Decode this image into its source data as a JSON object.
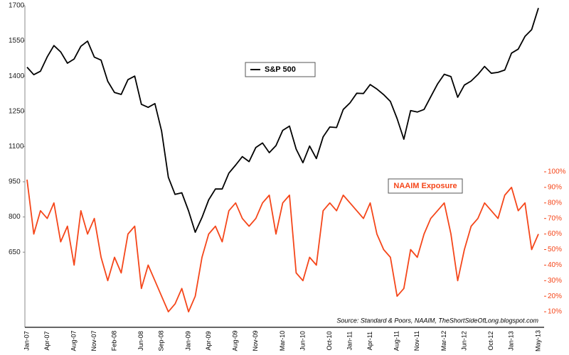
{
  "chart_data": {
    "type": "line",
    "categories": [
      "Jan-07",
      null,
      null,
      "Apr-07",
      null,
      null,
      null,
      "Aug-07",
      null,
      null,
      "Nov-07",
      null,
      null,
      "Feb-08",
      null,
      null,
      null,
      "Jun-08",
      null,
      null,
      "Sep-08",
      null,
      null,
      null,
      "Jan-09",
      null,
      null,
      "Apr-09",
      null,
      null,
      null,
      "Aug-09",
      null,
      null,
      "Nov-09",
      null,
      null,
      null,
      "Mar-10",
      null,
      null,
      "Jun-10",
      null,
      null,
      null,
      "Oct-10",
      null,
      null,
      "Jan-11",
      null,
      null,
      "Apr-11",
      null,
      null,
      null,
      "Aug-11",
      null,
      null,
      "Nov-11",
      null,
      null,
      null,
      "Mar-12",
      null,
      null,
      "Jun-12",
      null,
      null,
      null,
      "Oct-12",
      null,
      null,
      "Jan-13",
      null,
      null,
      null,
      "May-13"
    ],
    "series": [
      {
        "name": "S&P 500",
        "color": "#000000",
        "values": [
          1438,
          1406,
          1421,
          1482,
          1530,
          1503,
          1455,
          1473,
          1527,
          1549,
          1481,
          1468,
          1378,
          1330,
          1322,
          1385,
          1400,
          1280,
          1267,
          1283,
          1166,
          969,
          896,
          903,
          826,
          735,
          798,
          873,
          919,
          919,
          987,
          1021,
          1057,
          1036,
          1096,
          1115,
          1074,
          1104,
          1169,
          1187,
          1089,
          1031,
          1102,
          1049,
          1141,
          1183,
          1181,
          1258,
          1286,
          1327,
          1326,
          1364,
          1345,
          1321,
          1292,
          1219,
          1131,
          1253,
          1247,
          1258,
          1312,
          1366,
          1408,
          1398,
          1310,
          1362,
          1379,
          1407,
          1441,
          1412,
          1416,
          1426,
          1498,
          1515,
          1569,
          1598,
          1690
        ]
      },
      {
        "name": "NAAIM Exposure",
        "color": "#f5461a",
        "axis": "y2",
        "values": [
          95,
          60,
          75,
          70,
          80,
          55,
          65,
          40,
          75,
          60,
          70,
          45,
          30,
          45,
          35,
          60,
          65,
          25,
          40,
          30,
          20,
          10,
          15,
          25,
          10,
          20,
          45,
          60,
          65,
          55,
          75,
          80,
          70,
          65,
          70,
          80,
          85,
          60,
          80,
          85,
          35,
          30,
          45,
          40,
          75,
          80,
          75,
          85,
          80,
          75,
          70,
          80,
          60,
          50,
          45,
          20,
          25,
          50,
          45,
          60,
          70,
          75,
          80,
          60,
          30,
          50,
          65,
          70,
          80,
          75,
          70,
          85,
          90,
          75,
          80,
          50,
          60
        ]
      }
    ],
    "ylim": [
      330,
      1700
    ],
    "yticks": [
      650,
      800,
      950,
      1100,
      1250,
      1400,
      1550,
      1700
    ],
    "y2lim": [
      0,
      100
    ],
    "y2ticks": [
      {
        "value": 10,
        "label": "10%"
      },
      {
        "value": 20,
        "label": "20%"
      },
      {
        "value": 30,
        "label": "30%"
      },
      {
        "value": 40,
        "label": "40%"
      },
      {
        "value": 50,
        "label": "50%"
      },
      {
        "value": 60,
        "label": "60%"
      },
      {
        "value": 70,
        "label": "70%"
      },
      {
        "value": 80,
        "label": "80%"
      },
      {
        "value": 90,
        "label": "90%"
      },
      {
        "value": 100,
        "label": "100%"
      }
    ],
    "annotation": "Source: Standard & Poors, NAAIM, TheShortSideOfLong.blogspot.com"
  }
}
